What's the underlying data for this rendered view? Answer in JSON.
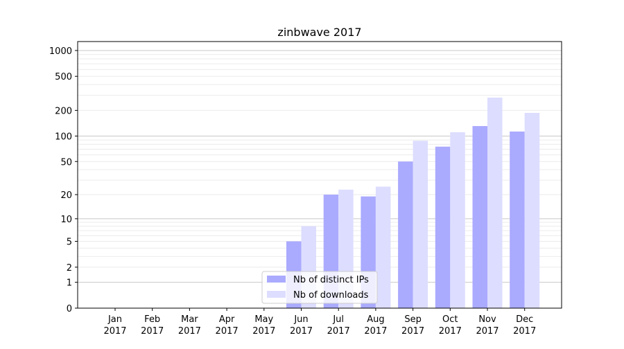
{
  "chart_data": {
    "type": "bar",
    "title": "zinbwave 2017",
    "xlabel": "",
    "ylabel": "",
    "yscale": "log(1+y)",
    "ylim": [
      0,
      1270
    ],
    "yticks": [
      0,
      1,
      2,
      5,
      10,
      20,
      50,
      100,
      200,
      500,
      1000
    ],
    "grid": true,
    "legend_position": "lower-center",
    "categories": [
      "Jan\n2017",
      "Feb\n2017",
      "Mar\n2017",
      "Apr\n2017",
      "May\n2017",
      "Jun\n2017",
      "Jul\n2017",
      "Aug\n2017",
      "Sep\n2017",
      "Oct\n2017",
      "Nov\n2017",
      "Dec\n2017"
    ],
    "series": [
      {
        "name": "Nb of distinct IPs",
        "color": "#aaaaff",
        "values": [
          0,
          0,
          0,
          0,
          0,
          5,
          20,
          19,
          50,
          75,
          131,
          113
        ]
      },
      {
        "name": "Nb of downloads",
        "color": "#ddddff",
        "values": [
          0,
          0,
          0,
          0,
          0,
          8,
          23,
          25,
          88,
          111,
          282,
          187
        ]
      }
    ]
  }
}
